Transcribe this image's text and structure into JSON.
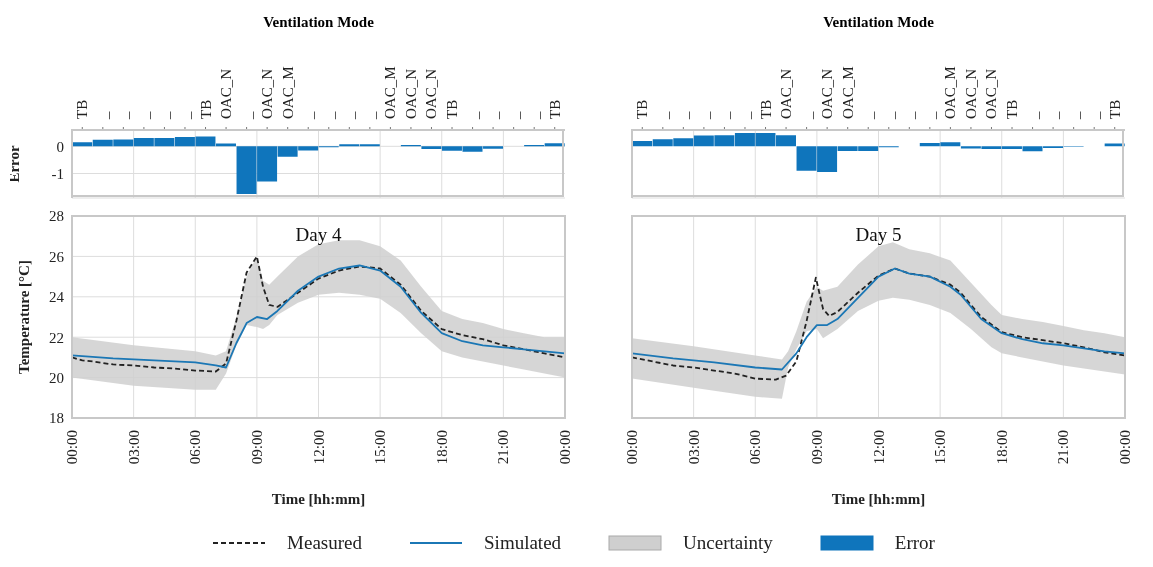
{
  "chart_data": [
    {
      "type": "bar",
      "ylabel": "Error",
      "x2label": "Ventilation Mode",
      "categories": [
        "TB",
        "_",
        "_",
        "_",
        "_",
        "_",
        "TB",
        "OAC_N",
        "_",
        "OAC_N",
        "OAC_M",
        "_",
        "_",
        "_",
        "_",
        "OAC_M",
        "OAC_N",
        "OAC_N",
        "TB",
        "_",
        "_",
        "_",
        "_",
        "TB"
      ],
      "series": [
        {
          "name": "Error",
          "color": "#0f75bc",
          "values": [
            0.15,
            0.24,
            0.25,
            0.31,
            0.31,
            0.34,
            0.36,
            0.1,
            -1.75,
            -1.29,
            -0.38,
            -0.15,
            -0.03,
            0.08,
            0.08,
            0,
            0.05,
            -0.1,
            -0.16,
            -0.2,
            -0.09,
            0,
            0.05,
            0.11
          ]
        }
      ],
      "ylim": [
        -1.9,
        0.6
      ],
      "yticks": [
        -1,
        0
      ],
      "grid": true,
      "legend": "bottom"
    },
    {
      "type": "bar",
      "x2label": "Ventilation Mode",
      "categories": [
        "TB",
        "_",
        "_",
        "_",
        "_",
        "_",
        "TB",
        "OAC_N",
        "_",
        "OAC_N",
        "OAC_M",
        "_",
        "_",
        "_",
        "_",
        "OAC_M",
        "OAC_N",
        "OAC_N",
        "TB",
        "_",
        "_",
        "_",
        "_",
        "TB"
      ],
      "series": [
        {
          "color": "#0f75bc",
          "values": [
            0.2,
            0.26,
            0.3,
            0.4,
            0.41,
            0.49,
            0.49,
            0.41,
            -0.9,
            -0.94,
            -0.17,
            -0.17,
            -0.03,
            0,
            0.12,
            0.15,
            -0.08,
            -0.1,
            -0.1,
            -0.18,
            -0.06,
            -0.02,
            0,
            0.1
          ]
        }
      ],
      "ylim": [
        -1.9,
        0.6
      ],
      "yticks": [
        -1,
        0
      ],
      "grid": true,
      "tick_labels": "x"
    },
    {
      "type": "line",
      "ylabel": "Temperature [°C]",
      "xlabel": "Time [hh:mm]",
      "annotations": [
        "Day 4"
      ],
      "series": [
        {
          "name": "Measured",
          "type": "line",
          "color": "#222222",
          "line_style": "dashed",
          "x": [
            0,
            0.5,
            1,
            2,
            3,
            4,
            5,
            6,
            7,
            7.5,
            8,
            8.5,
            9,
            9.3,
            9.6,
            10,
            11,
            12,
            13,
            14,
            15,
            16,
            17,
            18,
            19,
            20,
            21,
            22,
            23,
            24
          ],
          "values": [
            21.0,
            20.85,
            20.8,
            20.65,
            20.6,
            20.5,
            20.45,
            20.35,
            20.3,
            20.7,
            22.8,
            25.2,
            26.0,
            24.5,
            23.6,
            23.5,
            24.2,
            24.9,
            25.3,
            25.5,
            25.4,
            24.6,
            23.3,
            22.4,
            22.1,
            21.9,
            21.6,
            21.4,
            21.2,
            21.0
          ]
        },
        {
          "name": "Simulated",
          "type": "line",
          "color": "#1b77b5",
          "line_style": "solid",
          "x": [
            0,
            2,
            4,
            6,
            7,
            7.5,
            8,
            8.5,
            9,
            9.5,
            10,
            11,
            12,
            13,
            14,
            15,
            16,
            17,
            18,
            19,
            20,
            21,
            22,
            23,
            24
          ],
          "values": [
            21.1,
            20.95,
            20.85,
            20.75,
            20.6,
            20.5,
            21.7,
            22.7,
            23.0,
            22.9,
            23.3,
            24.3,
            25.0,
            25.4,
            25.55,
            25.3,
            24.5,
            23.2,
            22.2,
            21.8,
            21.6,
            21.5,
            21.4,
            21.3,
            21.2
          ]
        },
        {
          "name": "Uncertainty",
          "type": "area",
          "color": "#cfcfcf",
          "x": [
            0,
            3,
            6,
            7,
            7.5,
            8,
            8.5,
            9,
            9.3,
            9.6,
            10,
            11,
            12,
            13,
            14,
            15,
            16,
            17,
            18,
            19,
            20,
            21,
            22,
            23,
            24
          ],
          "values": [
            null,
            null,
            null,
            null,
            null,
            null,
            null,
            null,
            null,
            null,
            null,
            null,
            null,
            null,
            null,
            null,
            null,
            null,
            null,
            null,
            null,
            null,
            null,
            null,
            null
          ],
          "lower": [
            20.0,
            19.6,
            19.4,
            19.4,
            20.2,
            21.6,
            22.6,
            22.5,
            22.4,
            22.6,
            23.1,
            23.7,
            24.1,
            24.2,
            24.1,
            23.9,
            23.2,
            22.2,
            21.3,
            21.0,
            20.8,
            20.6,
            20.4,
            20.2,
            20.0
          ],
          "upper": [
            22.0,
            21.6,
            21.3,
            21.1,
            21.3,
            23.0,
            25.0,
            26.0,
            24.8,
            24.6,
            25.0,
            26.0,
            26.6,
            26.8,
            26.8,
            26.5,
            25.8,
            24.5,
            23.3,
            22.9,
            22.7,
            22.4,
            22.2,
            22.0,
            22.0
          ]
        }
      ],
      "xlim": [
        0,
        24
      ],
      "xticks": [
        {
          "value": 0,
          "label": "00:00"
        },
        {
          "value": 3,
          "label": "03:00"
        },
        {
          "value": 6,
          "label": "06:00"
        },
        {
          "value": 9,
          "label": "09:00"
        },
        {
          "value": 12,
          "label": "12:00"
        },
        {
          "value": 15,
          "label": "15:00"
        },
        {
          "value": 18,
          "label": "18:00"
        },
        {
          "value": 21,
          "label": "21:00"
        },
        {
          "value": 24,
          "label": "00:00"
        }
      ],
      "ylim": [
        18,
        28
      ],
      "yticks": [
        18,
        20,
        22,
        24,
        26,
        28
      ],
      "grid": true,
      "legend": "bottom"
    },
    {
      "type": "line",
      "xlabel": "Time [hh:mm]",
      "annotations": [
        "Day 5"
      ],
      "series": [
        {
          "type": "line",
          "color": "#222222",
          "line_style": "dashed",
          "x": [
            0,
            1,
            2,
            3,
            4,
            5,
            6,
            7,
            7.5,
            8,
            8.5,
            8.95,
            9.3,
            9.6,
            10,
            11,
            12,
            12.8,
            13.5,
            14.5,
            15.5,
            16,
            17,
            18,
            19,
            20,
            21,
            22,
            23,
            24
          ],
          "values": [
            21.0,
            20.8,
            20.6,
            20.5,
            20.35,
            20.2,
            19.95,
            19.9,
            20.1,
            20.8,
            22.8,
            24.95,
            23.4,
            23.05,
            23.25,
            24.2,
            25.05,
            25.4,
            25.15,
            25.0,
            24.6,
            24.2,
            23.0,
            22.25,
            22.0,
            21.85,
            21.7,
            21.5,
            21.25,
            21.1
          ]
        },
        {
          "type": "line",
          "color": "#1b77b5",
          "line_style": "solid",
          "x": [
            0,
            2,
            4,
            6,
            7.3,
            8,
            8.5,
            9,
            9.5,
            10,
            11,
            12,
            12.8,
            13.5,
            14.5,
            15.5,
            16,
            17,
            18,
            19,
            20,
            21,
            22,
            23,
            24
          ],
          "values": [
            21.2,
            20.95,
            20.75,
            20.5,
            20.4,
            21.2,
            22.0,
            22.6,
            22.6,
            22.9,
            23.95,
            25.0,
            25.4,
            25.15,
            25.0,
            24.5,
            24.1,
            22.9,
            22.2,
            21.9,
            21.7,
            21.6,
            21.45,
            21.3,
            21.2
          ]
        },
        {
          "type": "area",
          "color": "#cfcfcf",
          "x": [
            0,
            3,
            6,
            7.3,
            7.6,
            8,
            8.5,
            9,
            9.3,
            10,
            11,
            12,
            12.7,
            13.5,
            14.5,
            15.5,
            16.5,
            17.5,
            18,
            19,
            20,
            21,
            22,
            23,
            24
          ],
          "values": [
            null,
            null,
            null,
            null,
            null,
            null,
            null,
            null,
            null,
            null,
            null,
            null,
            null,
            null,
            null,
            null,
            null,
            null,
            null,
            null,
            null,
            null,
            null,
            null,
            null
          ],
          "lower": [
            19.95,
            19.5,
            19.05,
            18.95,
            20.5,
            21.4,
            22.3,
            22.4,
            21.95,
            22.4,
            23.3,
            23.8,
            23.95,
            23.85,
            23.6,
            23.2,
            22.4,
            21.5,
            21.2,
            21.0,
            20.8,
            20.6,
            20.45,
            20.3,
            20.15
          ],
          "upper": [
            21.95,
            21.55,
            21.1,
            20.9,
            21.3,
            22.3,
            23.75,
            24.5,
            24.3,
            24.5,
            25.6,
            26.5,
            26.7,
            26.35,
            26.15,
            25.8,
            24.7,
            23.6,
            23.1,
            22.9,
            22.75,
            22.55,
            22.35,
            22.2,
            22.0
          ]
        }
      ],
      "xlim": [
        0,
        24
      ],
      "xticks": [
        {
          "value": 0,
          "label": "00:00"
        },
        {
          "value": 3,
          "label": "03:00"
        },
        {
          "value": 6,
          "label": "06:00"
        },
        {
          "value": 9,
          "label": "09:00"
        },
        {
          "value": 12,
          "label": "12:00"
        },
        {
          "value": 15,
          "label": "15:00"
        },
        {
          "value": 18,
          "label": "18:00"
        },
        {
          "value": 21,
          "label": "21:00"
        },
        {
          "value": 24,
          "label": "00:00"
        }
      ],
      "ylim": [
        18,
        28
      ],
      "yticks": [
        18,
        20,
        22,
        24,
        26,
        28
      ],
      "grid": true,
      "tick_labels": "x"
    }
  ]
}
